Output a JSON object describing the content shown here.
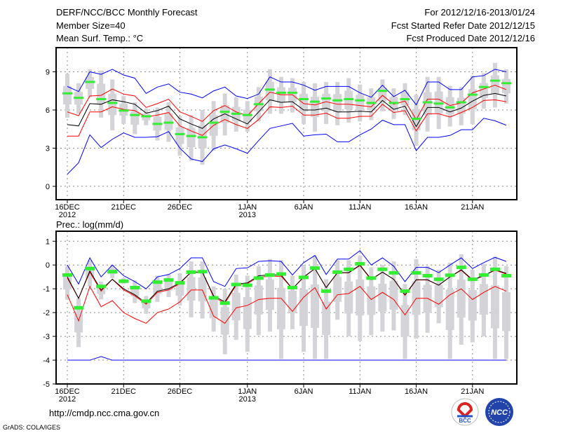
{
  "header": {
    "title": "DERF/NCC/BCC Monthly Forecast",
    "member_size": "Member Size=40",
    "variable": "Mean Surf. Temp.: °C",
    "period": "For 2012/12/16-2013/01/24",
    "start_date": "Fcst Started Refer Date 2012/12/15",
    "produced_date": "Fcst Produced Date 2012/12/16"
  },
  "footer": {
    "url": "http://cmdp.ncc.cma.gov.cn",
    "credit": "GrADS: COLA/IGES",
    "logo_bcc": "BCC",
    "logo_ncc": "NCC"
  },
  "colors": {
    "mean": "#000000",
    "spread": "#ff0000",
    "extreme": "#0000ff",
    "obs": "#33ee33",
    "box": "#d3d3d8",
    "grid": "#888888"
  },
  "chart_data": [
    {
      "type": "line",
      "title": "Mean Surf. Temp.: °C",
      "ylim": [
        -1.05,
        10.9
      ],
      "yticks": [
        "0",
        "3",
        "6",
        "9"
      ],
      "xticks": [
        {
          "day": 0,
          "label": "16DEC",
          "sub": "2012"
        },
        {
          "day": 5,
          "label": "21DEC"
        },
        {
          "day": 10,
          "label": "26DEC"
        },
        {
          "day": 16,
          "label": "1JAN",
          "sub": "2013"
        },
        {
          "day": 21,
          "label": "6JAN"
        },
        {
          "day": 26,
          "label": "11JAN"
        },
        {
          "day": 31,
          "label": "16JAN"
        },
        {
          "day": 36,
          "label": "21JAN"
        }
      ],
      "mean": [
        4.85,
        4.75,
        6.5,
        6.45,
        6.8,
        6.65,
        6.45,
        5.75,
        5.95,
        6.3,
        5.3,
        4.9,
        4.55,
        5.3,
        5.7,
        5.3,
        4.9,
        5.85,
        6.8,
        6.6,
        6.65,
        6.0,
        6.0,
        6.15,
        5.85,
        5.85,
        5.9,
        5.85,
        6.75,
        6.05,
        6.3,
        4.7,
        6.2,
        6.2,
        5.85,
        6.15,
        6.7,
        7.15,
        7.3,
        7.1
      ],
      "spread_upper": [
        5.85,
        5.55,
        7.1,
        7.15,
        7.65,
        7.25,
        7.1,
        6.2,
        6.5,
        6.85,
        5.85,
        5.5,
        5.1,
        5.95,
        6.35,
        5.85,
        5.55,
        6.5,
        7.4,
        7.2,
        7.2,
        6.5,
        6.4,
        6.65,
        6.45,
        6.45,
        6.35,
        6.25,
        7.15,
        6.45,
        6.7,
        5.25,
        6.85,
        6.85,
        6.35,
        6.55,
        7.35,
        7.65,
        7.95,
        7.6
      ],
      "spread_lower": [
        3.95,
        3.95,
        5.85,
        5.85,
        6.25,
        6.05,
        5.95,
        5.45,
        5.6,
        5.8,
        4.75,
        4.35,
        4.0,
        4.8,
        5.25,
        4.85,
        4.55,
        5.25,
        6.25,
        6.2,
        6.3,
        5.6,
        5.6,
        5.75,
        5.35,
        5.35,
        5.5,
        5.5,
        6.45,
        5.8,
        5.95,
        4.35,
        5.7,
        5.7,
        5.45,
        5.8,
        6.2,
        6.75,
        6.8,
        6.65
      ],
      "max": [
        7.85,
        7.45,
        9.0,
        8.8,
        9.2,
        8.75,
        8.5,
        7.3,
        7.8,
        8.05,
        7.4,
        7.25,
        6.95,
        7.5,
        7.8,
        7.1,
        6.9,
        7.25,
        8.6,
        8.2,
        8.2,
        7.95,
        7.55,
        7.85,
        7.85,
        7.85,
        7.35,
        7.0,
        7.95,
        7.05,
        7.55,
        6.4,
        8.2,
        8.2,
        7.6,
        7.6,
        8.6,
        8.7,
        9.2,
        9.0
      ],
      "min": [
        0.95,
        1.85,
        4.05,
        3.05,
        3.7,
        4.2,
        3.85,
        3.85,
        3.9,
        4.3,
        3.0,
        2.15,
        1.95,
        2.95,
        3.25,
        2.95,
        2.6,
        3.6,
        4.55,
        4.75,
        4.95,
        3.95,
        4.05,
        4.1,
        3.5,
        3.5,
        4.05,
        4.5,
        5.2,
        4.85,
        4.85,
        2.8,
        3.85,
        3.85,
        4.0,
        4.45,
        4.45,
        5.35,
        5.15,
        4.8
      ],
      "marker": [
        7.25,
        6.9,
        8.15,
        6.8,
        6.5,
        5.9,
        5.55,
        5.45,
        4.85,
        4.95,
        4.05,
        3.9,
        3.8,
        4.95,
        5.8,
        5.65,
        5.55,
        6.4,
        7.55,
        7.3,
        7.3,
        6.8,
        6.6,
        6.85,
        6.7,
        6.8,
        6.7,
        6.5,
        7.45,
        6.5,
        6.8,
        5.25,
        6.55,
        6.45,
        6.15,
        6.55,
        7.15,
        7.75,
        8.25,
        8.05
      ],
      "whisker_hi": [
        8.85,
        8.1,
        9.2,
        9.1,
        8.4,
        7.1,
        6.6,
        6.1,
        6.2,
        6.6,
        5.5,
        5.6,
        6.0,
        6.7,
        7.3,
        7.0,
        6.7,
        7.8,
        9.2,
        8.6,
        8.5,
        8.2,
        8.1,
        8.2,
        8.2,
        8.5,
        8.0,
        7.7,
        8.4,
        7.7,
        8.1,
        7.2,
        8.6,
        8.6,
        7.9,
        7.8,
        8.7,
        8.9,
        9.7,
        9.2
      ],
      "whisker_lo": [
        5.4,
        5.7,
        7.0,
        5.4,
        4.4,
        4.9,
        4.1,
        4.8,
        3.6,
        3.5,
        2.4,
        2.0,
        1.7,
        2.8,
        4.0,
        4.3,
        4.3,
        5.1,
        5.7,
        5.7,
        5.8,
        4.9,
        4.3,
        4.9,
        4.8,
        5.0,
        5.1,
        5.2,
        5.9,
        5.3,
        5.6,
        3.2,
        4.3,
        4.5,
        4.7,
        4.8,
        4.9,
        6.1,
        6.2,
        6.5
      ]
    },
    {
      "type": "line",
      "title": "Prec.: log(mm/d)",
      "ylim": [
        -5,
        1.42
      ],
      "yticks": [
        "-5",
        "-4",
        "-3",
        "-2",
        "-1",
        "0",
        "1"
      ],
      "xticks": [
        {
          "day": 0,
          "label": "16DEC",
          "sub": "2012"
        },
        {
          "day": 5,
          "label": "21DEC"
        },
        {
          "day": 10,
          "label": "26DEC"
        },
        {
          "day": 16,
          "label": "1JAN",
          "sub": "2013"
        },
        {
          "day": 21,
          "label": "6JAN"
        },
        {
          "day": 26,
          "label": "11JAN"
        },
        {
          "day": 31,
          "label": "16JAN"
        },
        {
          "day": 36,
          "label": "21JAN"
        }
      ],
      "mean": [
        -0.5,
        -1.4,
        -0.25,
        -1.05,
        -0.6,
        -1.0,
        -1.25,
        -1.6,
        -1.1,
        -1.0,
        -0.75,
        -0.3,
        -0.3,
        -1.3,
        -1.55,
        -0.8,
        -0.75,
        -0.45,
        -0.42,
        -0.42,
        -1.0,
        -0.5,
        -0.15,
        -0.95,
        -0.32,
        -0.32,
        0.0,
        -0.6,
        -0.3,
        -0.6,
        -1.25,
        -0.62,
        -0.62,
        -0.85,
        -0.5,
        -0.2,
        -0.62,
        -0.45,
        -0.2,
        -0.35
      ],
      "spread_upper": [
        -0.55,
        -1.4,
        -0.3,
        -1.1,
        -0.6,
        -1.05,
        -1.3,
        -1.65,
        -1.15,
        -1.05,
        -0.78,
        -0.3,
        -0.3,
        -1.35,
        -1.6,
        -0.85,
        -0.78,
        -0.5,
        -0.48,
        -0.47,
        -1.0,
        -0.52,
        -0.15,
        -0.95,
        -0.33,
        -0.33,
        -0.02,
        -0.62,
        -0.3,
        -0.6,
        -1.28,
        -0.63,
        -0.63,
        -0.85,
        -0.5,
        -0.22,
        -0.65,
        -0.45,
        -0.22,
        -0.38
      ],
      "spread_lower": [
        -1.25,
        -2.35,
        -0.9,
        -1.75,
        -1.5,
        -2.0,
        -2.25,
        -2.45,
        -2.0,
        -1.85,
        -1.55,
        -1.05,
        -1.05,
        -2.15,
        -2.45,
        -1.8,
        -1.7,
        -1.45,
        -1.4,
        -1.4,
        -1.95,
        -1.35,
        -0.95,
        -1.85,
        -1.25,
        -1.2,
        -0.9,
        -1.45,
        -1.15,
        -1.45,
        -2.1,
        -1.4,
        -1.4,
        -1.65,
        -1.25,
        -1.0,
        -1.45,
        -1.15,
        -0.9,
        -1.1
      ],
      "max": [
        0.0,
        -0.8,
        0.3,
        -0.5,
        0.0,
        -0.45,
        -0.7,
        -1.0,
        -0.5,
        -0.4,
        -0.15,
        0.3,
        0.3,
        -0.7,
        -0.9,
        -0.15,
        -0.12,
        0.15,
        0.18,
        0.15,
        -0.42,
        0.1,
        0.4,
        -0.4,
        0.25,
        0.25,
        0.6,
        0.0,
        0.3,
        -0.05,
        -0.7,
        -0.1,
        -0.1,
        -0.32,
        0.0,
        0.3,
        -0.15,
        0.1,
        0.32,
        0.15
      ],
      "min": [
        -4,
        -4,
        -4,
        -3.85,
        -4,
        -4,
        -4,
        -4,
        -4,
        -4,
        -4,
        -4,
        -4,
        -4,
        -4,
        -4,
        -4,
        -4,
        -4,
        -4,
        -4,
        -4,
        -4,
        -4,
        -4,
        -4,
        -4,
        -4,
        -4,
        -4,
        -4,
        -4,
        -4,
        -4,
        -4,
        -4,
        -4,
        -4,
        -4,
        -4
      ],
      "marker": [
        -0.42,
        -1.8,
        -0.15,
        -0.9,
        -0.28,
        -0.68,
        -0.95,
        -1.52,
        -0.72,
        -0.63,
        -0.75,
        -0.3,
        -0.28,
        -1.38,
        -1.6,
        -0.82,
        -0.85,
        -0.55,
        -0.42,
        -0.38,
        -0.95,
        -0.52,
        -0.13,
        -1.1,
        -0.3,
        -0.18,
        0.05,
        -0.55,
        -0.18,
        -0.33,
        -1.1,
        -0.33,
        -0.45,
        -0.6,
        -0.43,
        -0.1,
        -0.6,
        -0.42,
        -0.18,
        -0.45
      ],
      "whisker_hi": [
        -0.05,
        -1.4,
        0.2,
        -0.7,
        0.0,
        -0.55,
        -0.65,
        -1.3,
        -0.45,
        -0.4,
        -0.35,
        0.15,
        0.15,
        -0.9,
        -1.0,
        -0.4,
        -0.45,
        -0.05,
        0.25,
        0.2,
        -0.45,
        0.0,
        0.4,
        -0.6,
        0.2,
        0.2,
        0.4,
        -0.1,
        0.0,
        0.15,
        -0.8,
        0.25,
        -0.05,
        -0.2,
        0.1,
        0.45,
        -0.2,
        0.05,
        0.35,
        -0.05
      ],
      "whisker_lo": [
        -1.45,
        -3.45,
        -0.9,
        -1.45,
        -0.55,
        -0.8,
        -1.6,
        -2.05,
        -1.55,
        -1.35,
        -1.7,
        -2.2,
        -2.25,
        -2.8,
        -3.75,
        -3.15,
        -3.65,
        -2.95,
        -2.8,
        -3.95,
        -2.7,
        -3.65,
        -3.95,
        -3.95,
        -2.3,
        -3.0,
        -3.2,
        -2.95,
        -2.8,
        -2.75,
        -3.95,
        -3.1,
        -2.85,
        -2.45,
        -3.95,
        -3.35,
        -3.25,
        -3.0,
        -3.95,
        -3.95
      ]
    }
  ]
}
